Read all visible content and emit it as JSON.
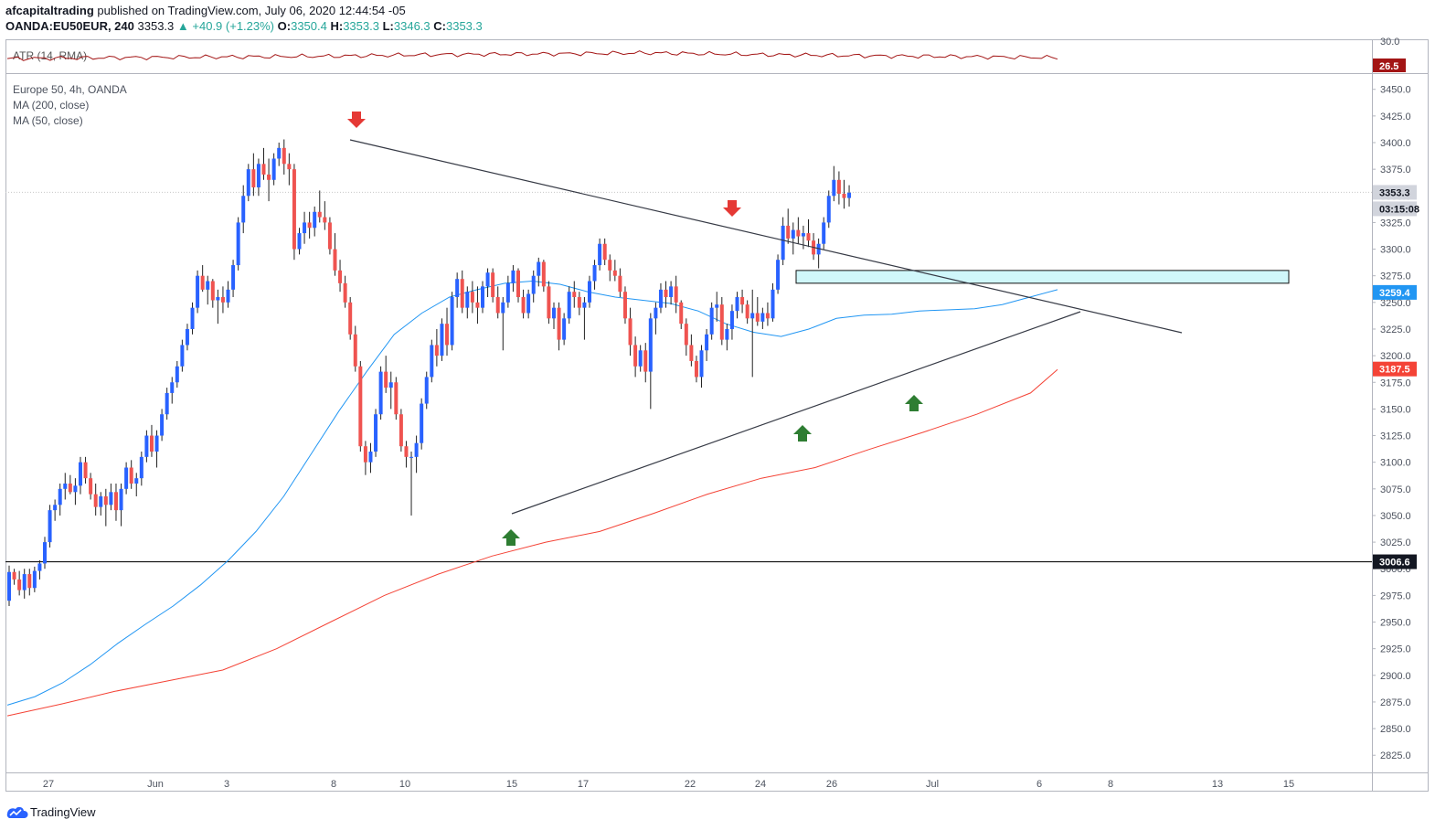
{
  "header": {
    "publisher": "afcapitaltrading",
    "published_text": "published on TradingView.com, July 06, 2020 12:44:54 -05",
    "symbol": "OANDA:EU50EUR, 240",
    "last": "3353.3",
    "change": "+40.9 (+1.23%)",
    "o_label": "O:",
    "o_value": "3350.4",
    "h_label": "H:",
    "h_value": "3353.3",
    "l_label": "L:",
    "l_value": "3346.3",
    "c_label": "C:",
    "c_value": "3353.3"
  },
  "atr_pane": {
    "label": "ATR (14, RMA)",
    "top_tick": "30.0",
    "value_tag": "26.5",
    "color": "#a31515"
  },
  "legend": {
    "title": "Europe 50, 4h, OANDA",
    "ma200": "MA (200, close)",
    "ma50": "MA (50, close)"
  },
  "price_tags": {
    "last_price": "3353.3",
    "countdown": "03:15:08",
    "ma50_value": "3259.4",
    "ma200_value": "3187.5",
    "support_value": "3006.6"
  },
  "colors": {
    "up": "#2962ff",
    "down": "#ef5350",
    "ma50": "#2196f3",
    "ma200": "#f44336",
    "trendline": "#363a45",
    "zone_fill": "#d0f7fa",
    "arrow_down": "#e53935",
    "arrow_up": "#2e7d32"
  },
  "footer": {
    "brand": "TradingView"
  },
  "chart_data": {
    "type": "candlestick",
    "symbol": "Europe 50, 4h, OANDA",
    "ylim": [
      2805,
      3470
    ],
    "y_ticks": [
      2825,
      2850,
      2875,
      2900,
      2925,
      2950,
      2975,
      3000,
      3025,
      3050,
      3075,
      3100,
      3125,
      3150,
      3175,
      3200,
      3225,
      3250,
      3275,
      3300,
      3325,
      3350,
      3375,
      3400,
      3425,
      3450
    ],
    "x_ticks": [
      "27",
      "Jun",
      "3",
      "8",
      "10",
      "15",
      "17",
      "22",
      "24",
      "26",
      "Jul",
      "6",
      "8",
      "13",
      "15"
    ],
    "candles_ohlc": [
      [
        2970,
        3003,
        2965,
        2997
      ],
      [
        2997,
        3000,
        2985,
        2990
      ],
      [
        2990,
        2998,
        2975,
        2980
      ],
      [
        2980,
        3000,
        2972,
        2995
      ],
      [
        2995,
        3000,
        2975,
        2982
      ],
      [
        2982,
        3002,
        2978,
        2998
      ],
      [
        2998,
        3008,
        2990,
        3005
      ],
      [
        3005,
        3030,
        3000,
        3025
      ],
      [
        3025,
        3060,
        3020,
        3055
      ],
      [
        3055,
        3065,
        3045,
        3060
      ],
      [
        3060,
        3080,
        3050,
        3075
      ],
      [
        3075,
        3090,
        3065,
        3080
      ],
      [
        3080,
        3088,
        3070,
        3072
      ],
      [
        3072,
        3085,
        3060,
        3078
      ],
      [
        3078,
        3105,
        3070,
        3100
      ],
      [
        3100,
        3105,
        3080,
        3085
      ],
      [
        3085,
        3090,
        3065,
        3070
      ],
      [
        3070,
        3080,
        3050,
        3058
      ],
      [
        3058,
        3072,
        3050,
        3068
      ],
      [
        3068,
        3075,
        3040,
        3060
      ],
      [
        3060,
        3080,
        3055,
        3072
      ],
      [
        3072,
        3080,
        3045,
        3055
      ],
      [
        3055,
        3080,
        3040,
        3075
      ],
      [
        3075,
        3100,
        3070,
        3095
      ],
      [
        3095,
        3102,
        3075,
        3080
      ],
      [
        3080,
        3090,
        3068,
        3085
      ],
      [
        3085,
        3110,
        3078,
        3105
      ],
      [
        3105,
        3130,
        3100,
        3125
      ],
      [
        3125,
        3135,
        3105,
        3110
      ],
      [
        3110,
        3130,
        3095,
        3125
      ],
      [
        3125,
        3150,
        3120,
        3145
      ],
      [
        3145,
        3170,
        3140,
        3165
      ],
      [
        3165,
        3180,
        3155,
        3175
      ],
      [
        3175,
        3195,
        3170,
        3190
      ],
      [
        3190,
        3215,
        3185,
        3210
      ],
      [
        3210,
        3230,
        3205,
        3225
      ],
      [
        3225,
        3250,
        3220,
        3245
      ],
      [
        3245,
        3280,
        3240,
        3275
      ],
      [
        3275,
        3285,
        3260,
        3262
      ],
      [
        3262,
        3275,
        3248,
        3270
      ],
      [
        3270,
        3272,
        3245,
        3252
      ],
      [
        3252,
        3262,
        3230,
        3255
      ],
      [
        3255,
        3265,
        3240,
        3250
      ],
      [
        3250,
        3270,
        3245,
        3262
      ],
      [
        3262,
        3290,
        3255,
        3285
      ],
      [
        3285,
        3330,
        3280,
        3325
      ],
      [
        3325,
        3360,
        3315,
        3350
      ],
      [
        3350,
        3380,
        3345,
        3375
      ],
      [
        3375,
        3390,
        3350,
        3358
      ],
      [
        3358,
        3385,
        3350,
        3380
      ],
      [
        3380,
        3395,
        3365,
        3370
      ],
      [
        3370,
        3385,
        3345,
        3365
      ],
      [
        3365,
        3390,
        3360,
        3385
      ],
      [
        3385,
        3400,
        3378,
        3395
      ],
      [
        3395,
        3403,
        3370,
        3380
      ],
      [
        3380,
        3390,
        3360,
        3375
      ],
      [
        3375,
        3380,
        3290,
        3300
      ],
      [
        3300,
        3320,
        3295,
        3315
      ],
      [
        3315,
        3335,
        3305,
        3325
      ],
      [
        3325,
        3335,
        3310,
        3320
      ],
      [
        3320,
        3340,
        3312,
        3335
      ],
      [
        3335,
        3355,
        3325,
        3330
      ],
      [
        3330,
        3345,
        3318,
        3325
      ],
      [
        3325,
        3330,
        3295,
        3300
      ],
      [
        3300,
        3315,
        3275,
        3280
      ],
      [
        3280,
        3290,
        3260,
        3268
      ],
      [
        3268,
        3275,
        3245,
        3250
      ],
      [
        3250,
        3255,
        3215,
        3220
      ],
      [
        3220,
        3228,
        3185,
        3190
      ],
      [
        3190,
        3195,
        3110,
        3115
      ],
      [
        3115,
        3120,
        3088,
        3100
      ],
      [
        3100,
        3118,
        3090,
        3110
      ],
      [
        3110,
        3150,
        3105,
        3145
      ],
      [
        3145,
        3190,
        3140,
        3185
      ],
      [
        3185,
        3200,
        3165,
        3170
      ],
      [
        3170,
        3185,
        3150,
        3175
      ],
      [
        3175,
        3180,
        3140,
        3145
      ],
      [
        3145,
        3150,
        3110,
        3115
      ],
      [
        3115,
        3120,
        3095,
        3105
      ],
      [
        3105,
        3110,
        3050,
        3105
      ],
      [
        3105,
        3125,
        3090,
        3118
      ],
      [
        3118,
        3160,
        3112,
        3155
      ],
      [
        3155,
        3185,
        3150,
        3180
      ],
      [
        3180,
        3215,
        3175,
        3210
      ],
      [
        3210,
        3225,
        3190,
        3200
      ],
      [
        3200,
        3235,
        3195,
        3230
      ],
      [
        3230,
        3245,
        3200,
        3210
      ],
      [
        3210,
        3260,
        3205,
        3255
      ],
      [
        3255,
        3278,
        3245,
        3272
      ],
      [
        3272,
        3280,
        3240,
        3245
      ],
      [
        3245,
        3265,
        3235,
        3260
      ],
      [
        3260,
        3270,
        3240,
        3250
      ],
      [
        3250,
        3265,
        3230,
        3245
      ],
      [
        3245,
        3270,
        3240,
        3265
      ],
      [
        3265,
        3282,
        3255,
        3278
      ],
      [
        3278,
        3282,
        3250,
        3255
      ],
      [
        3255,
        3265,
        3235,
        3240
      ],
      [
        3240,
        3255,
        3205,
        3250
      ],
      [
        3250,
        3275,
        3245,
        3268
      ],
      [
        3268,
        3285,
        3260,
        3280
      ],
      [
        3280,
        3282,
        3250,
        3255
      ],
      [
        3255,
        3262,
        3235,
        3240
      ],
      [
        3240,
        3262,
        3235,
        3258
      ],
      [
        3258,
        3280,
        3250,
        3275
      ],
      [
        3275,
        3292,
        3265,
        3288
      ],
      [
        3288,
        3290,
        3260,
        3265
      ],
      [
        3265,
        3270,
        3230,
        3235
      ],
      [
        3235,
        3250,
        3225,
        3245
      ],
      [
        3245,
        3250,
        3205,
        3215
      ],
      [
        3215,
        3240,
        3210,
        3235
      ],
      [
        3235,
        3265,
        3230,
        3260
      ],
      [
        3260,
        3270,
        3245,
        3255
      ],
      [
        3255,
        3260,
        3238,
        3245
      ],
      [
        3245,
        3255,
        3215,
        3250
      ],
      [
        3250,
        3275,
        3245,
        3270
      ],
      [
        3270,
        3290,
        3262,
        3285
      ],
      [
        3285,
        3310,
        3280,
        3305
      ],
      [
        3305,
        3310,
        3285,
        3290
      ],
      [
        3290,
        3295,
        3270,
        3280
      ],
      [
        3280,
        3290,
        3270,
        3275
      ],
      [
        3275,
        3282,
        3255,
        3260
      ],
      [
        3260,
        3265,
        3230,
        3235
      ],
      [
        3235,
        3245,
        3200,
        3210
      ],
      [
        3210,
        3218,
        3180,
        3190
      ],
      [
        3190,
        3210,
        3185,
        3205
      ],
      [
        3205,
        3212,
        3175,
        3185
      ],
      [
        3185,
        3240,
        3150,
        3235
      ],
      [
        3235,
        3250,
        3220,
        3245
      ],
      [
        3245,
        3268,
        3240,
        3262
      ],
      [
        3262,
        3270,
        3245,
        3255
      ],
      [
        3255,
        3270,
        3248,
        3265
      ],
      [
        3265,
        3275,
        3240,
        3250
      ],
      [
        3250,
        3252,
        3225,
        3230
      ],
      [
        3230,
        3235,
        3200,
        3210
      ],
      [
        3210,
        3220,
        3190,
        3195
      ],
      [
        3195,
        3200,
        3175,
        3180
      ],
      [
        3180,
        3210,
        3170,
        3205
      ],
      [
        3205,
        3225,
        3195,
        3220
      ],
      [
        3220,
        3250,
        3215,
        3245
      ],
      [
        3245,
        3260,
        3232,
        3248
      ],
      [
        3248,
        3255,
        3210,
        3215
      ],
      [
        3215,
        3230,
        3205,
        3225
      ],
      [
        3225,
        3248,
        3215,
        3242
      ],
      [
        3242,
        3260,
        3235,
        3255
      ],
      [
        3255,
        3262,
        3240,
        3248
      ],
      [
        3248,
        3252,
        3230,
        3235
      ],
      [
        3235,
        3262,
        3180,
        3240
      ],
      [
        3240,
        3255,
        3228,
        3232
      ],
      [
        3232,
        3245,
        3225,
        3240
      ],
      [
        3240,
        3250,
        3228,
        3235
      ],
      [
        3235,
        3268,
        3232,
        3262
      ],
      [
        3262,
        3295,
        3258,
        3290
      ],
      [
        3290,
        3330,
        3285,
        3322
      ],
      [
        3322,
        3338,
        3305,
        3310
      ],
      [
        3310,
        3325,
        3295,
        3318
      ],
      [
        3318,
        3330,
        3305,
        3312
      ],
      [
        3312,
        3322,
        3300,
        3315
      ],
      [
        3315,
        3328,
        3302,
        3308
      ],
      [
        3308,
        3315,
        3290,
        3295
      ],
      [
        3295,
        3310,
        3282,
        3305
      ],
      [
        3305,
        3330,
        3300,
        3325
      ],
      [
        3325,
        3355,
        3320,
        3350
      ],
      [
        3350,
        3378,
        3345,
        3365
      ],
      [
        3365,
        3373,
        3342,
        3352
      ],
      [
        3352,
        3365,
        3338,
        3348
      ],
      [
        3348,
        3360,
        3340,
        3353
      ]
    ],
    "ma50_path": [
      [
        0,
        2872
      ],
      [
        10,
        2880
      ],
      [
        20,
        2893
      ],
      [
        30,
        2910
      ],
      [
        40,
        2930
      ],
      [
        50,
        2948
      ],
      [
        60,
        2965
      ],
      [
        70,
        2985
      ],
      [
        80,
        3008
      ],
      [
        90,
        3035
      ],
      [
        100,
        3068
      ],
      [
        110,
        3108
      ],
      [
        120,
        3148
      ],
      [
        130,
        3185
      ],
      [
        140,
        3220
      ],
      [
        150,
        3240
      ],
      [
        160,
        3255
      ],
      [
        170,
        3262
      ],
      [
        180,
        3268
      ],
      [
        190,
        3270
      ],
      [
        200,
        3267
      ],
      [
        210,
        3260
      ],
      [
        220,
        3255
      ],
      [
        230,
        3252
      ],
      [
        240,
        3249
      ],
      [
        250,
        3242
      ],
      [
        260,
        3230
      ],
      [
        270,
        3222
      ],
      [
        280,
        3218
      ],
      [
        290,
        3225
      ],
      [
        300,
        3235
      ],
      [
        310,
        3238
      ],
      [
        320,
        3239
      ],
      [
        330,
        3242
      ],
      [
        340,
        3243
      ],
      [
        350,
        3244
      ],
      [
        360,
        3248
      ],
      [
        370,
        3255
      ],
      [
        380,
        3262
      ]
    ],
    "ma200_path": [
      [
        0,
        2862
      ],
      [
        20,
        2873
      ],
      [
        40,
        2885
      ],
      [
        60,
        2895
      ],
      [
        80,
        2905
      ],
      [
        100,
        2925
      ],
      [
        120,
        2950
      ],
      [
        140,
        2975
      ],
      [
        160,
        2995
      ],
      [
        180,
        3012
      ],
      [
        200,
        3025
      ],
      [
        220,
        3035
      ],
      [
        240,
        3052
      ],
      [
        260,
        3070
      ],
      [
        280,
        3085
      ],
      [
        300,
        3095
      ],
      [
        320,
        3112
      ],
      [
        340,
        3128
      ],
      [
        360,
        3145
      ],
      [
        380,
        3165
      ],
      [
        390,
        3187
      ]
    ],
    "atr_path": [
      [
        0,
        0.38
      ],
      [
        40,
        0.42
      ],
      [
        80,
        0.45
      ],
      [
        120,
        0.48
      ],
      [
        160,
        0.55
      ],
      [
        200,
        0.58
      ],
      [
        240,
        0.62
      ],
      [
        280,
        0.55
      ],
      [
        320,
        0.5
      ],
      [
        360,
        0.46
      ],
      [
        392,
        0.42
      ]
    ],
    "trendlines": [
      {
        "from": [
          0,
          3403
        ],
        "to": [
          400,
          3222
        ]
      },
      {
        "from": [
          0,
          3052
        ],
        "to": [
          0,
          3240
        ]
      }
    ],
    "resistance_zone": [
      3268,
      3280
    ],
    "support_line": 3006.6,
    "signals_down": [
      [
        3420,
        "sell"
      ],
      [
        3332,
        "sell"
      ]
    ],
    "signals_up": [
      [
        3043,
        "buy"
      ],
      [
        3128,
        "buy"
      ],
      [
        3166,
        "buy"
      ]
    ]
  }
}
